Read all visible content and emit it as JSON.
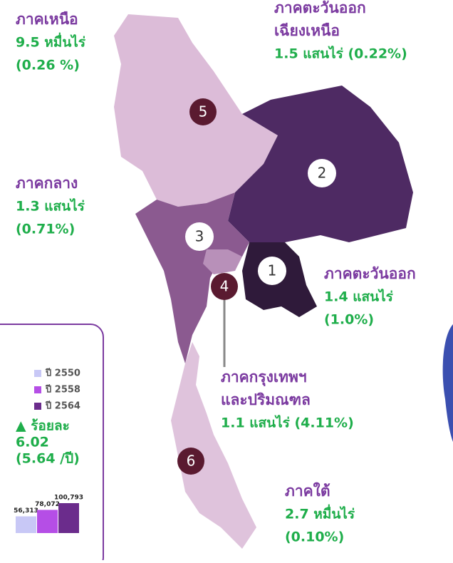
{
  "regions": [
    {
      "title_lines": [
        "ภาคเหนือ"
      ],
      "detail_lines": [
        "9.5 หมื่นไร่",
        "(0.26 %)"
      ]
    },
    {
      "title_lines": [
        "ภาคตะวันออก",
        "เฉียงเหนือ"
      ],
      "detail_lines": [
        "1.5 แสนไร่ (0.22%)"
      ]
    },
    {
      "title_lines": [
        "ภาคกลาง"
      ],
      "detail_lines": [
        "1.3 แสนไร่",
        "(0.71%)"
      ]
    },
    {
      "title_lines": [
        "ภาคตะวันออก"
      ],
      "detail_lines": [
        "1.4 แสนไร่",
        "(1.0%)"
      ]
    },
    {
      "title_lines": [
        "ภาคกรุงเทพฯ",
        "และปริมณฑล"
      ],
      "detail_lines": [
        "1.1 แสนไร่ (4.11%)"
      ]
    },
    {
      "title_lines": [
        "ภาคใต้"
      ],
      "detail_lines": [
        "2.7 หมื่นไร่",
        "(0.10%)"
      ]
    }
  ],
  "markers": [
    "1",
    "2",
    "3",
    "4",
    "5",
    "6"
  ],
  "inset": {
    "legend": [
      "ปี 2550",
      "ปี 2558",
      "ปี 2564"
    ],
    "colors": [
      "#c8c8f6",
      "#b54ee6",
      "#6b2c8c"
    ],
    "values": [
      56313,
      78072,
      100793
    ],
    "value_labels": [
      "56,313",
      "78,072",
      "100,793"
    ],
    "change_label": "▲ ร้อยละ",
    "change_value": "6.02",
    "change_rate": "(5.64 /ปี)"
  }
}
